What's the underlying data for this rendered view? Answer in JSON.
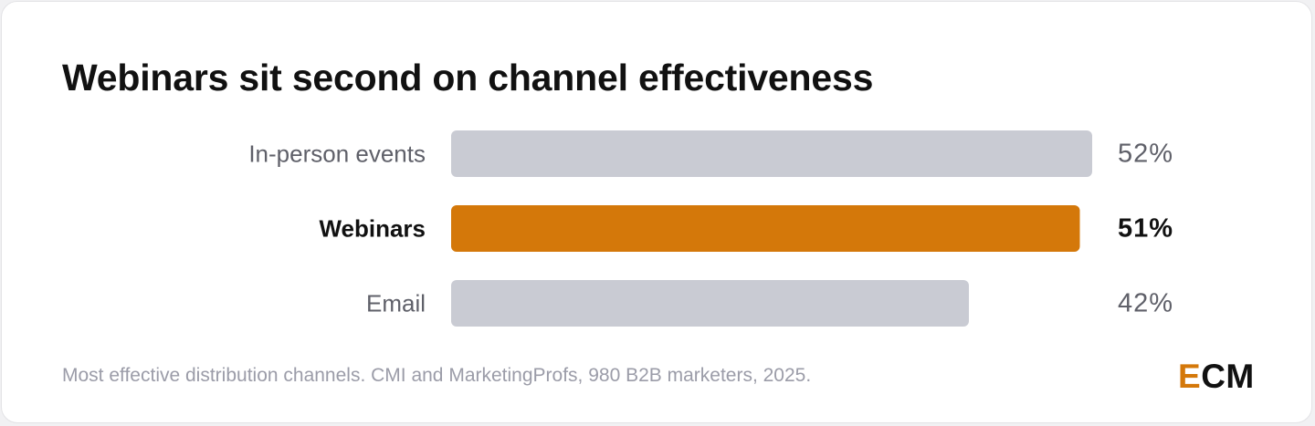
{
  "title": "Webinars sit second on channel effectiveness",
  "footnote": "Most effective distribution channels. CMI and MarketingProfs, 980 B2B marketers, 2025.",
  "logo": {
    "accent_letter": "E",
    "rest": "CM"
  },
  "colors": {
    "highlight": "#d4780a",
    "muted_bar": "#c9cbd3",
    "muted_label": "#5f6069",
    "highlight_label": "#111111"
  },
  "chart_data": {
    "type": "bar",
    "orientation": "horizontal",
    "categories": [
      "In-person events",
      "Webinars",
      "Email"
    ],
    "values": [
      52,
      51,
      42
    ],
    "value_suffix": "%",
    "highlight": "Webinars",
    "xlim": [
      0,
      52
    ],
    "grid": false,
    "legend": "none"
  }
}
